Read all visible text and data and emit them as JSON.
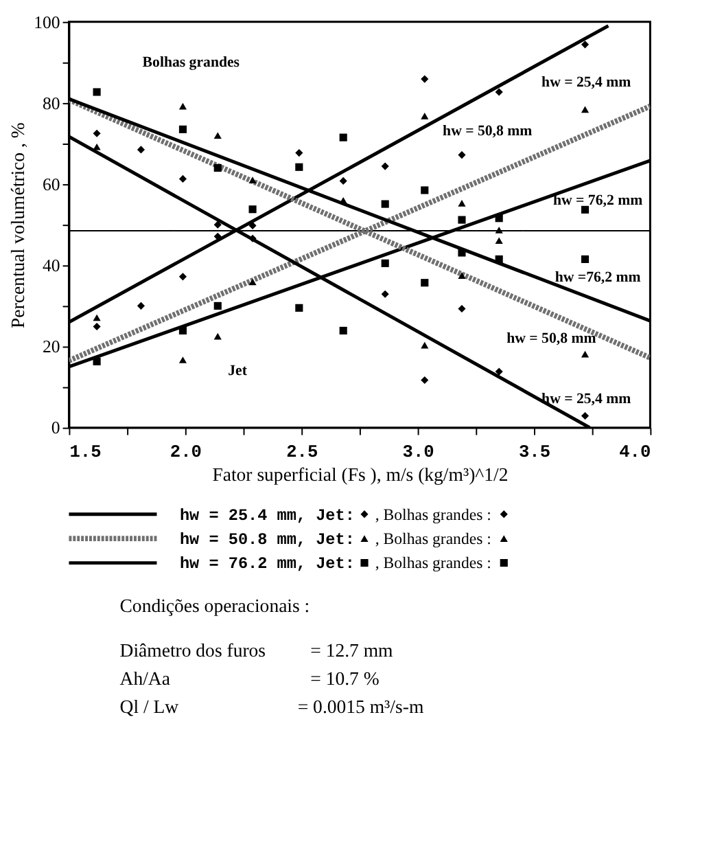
{
  "chart_data": {
    "type": "line",
    "xlabel": "Fator superficial (Fs ), m/s (kg/m³)^1/2",
    "ylabel": "Percentual volumétrico , %",
    "xlim": [
      1.5,
      4.0
    ],
    "xticks": [
      1.5,
      {
        "value": 1.75,
        "label": null
      },
      {
        "value": 2,
        "label": "2.0"
      },
      {
        "value": 2.25,
        "label": null
      },
      2.5,
      {
        "value": 2.75,
        "label": null
      },
      {
        "value": 3,
        "label": "3.0"
      },
      {
        "value": 3.25,
        "label": null
      },
      3.5,
      {
        "value": 3.75,
        "label": null
      },
      {
        "value": 4,
        "label": "4.0"
      }
    ],
    "ylim": [
      0,
      100
    ],
    "yticks": [
      0,
      {
        "value": 10,
        "label": null
      },
      20,
      {
        "value": 30,
        "label": null
      },
      40,
      {
        "value": 50,
        "label": null
      },
      60,
      {
        "value": 70,
        "label": null
      },
      80,
      {
        "value": 90,
        "label": null
      },
      100
    ],
    "grid": false,
    "legend": "bottom",
    "series": [
      {
        "marker": "none",
        "line_style": "solid",
        "color": "#000000",
        "x": [
          1.5,
          3.82
        ],
        "values": [
          26,
          99
        ]
      },
      {
        "marker": "none",
        "line_style": "dotted",
        "color": "#707070",
        "x": [
          1.5,
          4.0
        ],
        "values": [
          16.5,
          79.2
        ]
      },
      {
        "marker": "none",
        "line_style": "solid",
        "color": "#000000",
        "x": [
          1.5,
          4.0
        ],
        "values": [
          15,
          65.8
        ]
      },
      {
        "marker": "none",
        "line_style": "solid",
        "color": "#000000",
        "x": [
          1.5,
          3.74
        ],
        "values": [
          71.7,
          0
        ]
      },
      {
        "marker": "none",
        "line_style": "dotted",
        "color": "#707070",
        "x": [
          1.5,
          4.0
        ],
        "values": [
          80.8,
          17.2
        ]
      },
      {
        "marker": "none",
        "line_style": "solid",
        "color": "#000000",
        "x": [
          1.5,
          4.0
        ],
        "values": [
          81,
          26.3
        ]
      },
      {
        "type": "scatter",
        "name": "hw = 25.4 mm, Jet:",
        "marker": "diamond",
        "color": "#000000",
        "x": [
          1.62,
          1.81,
          1.99,
          2.14,
          2.29,
          2.49,
          2.68,
          2.86,
          3.03,
          3.19,
          3.35,
          3.72
        ],
        "values": [
          24.9,
          30,
          37.2,
          47.1,
          49.8,
          67.7,
          60.8,
          64.4,
          85.9,
          67.2,
          82.7,
          94.4
        ]
      },
      {
        "type": "scatter",
        "name": "hw = 50.8 mm, Jet:",
        "marker": "triangle",
        "color": "#000000",
        "x": [
          1.62,
          1.99,
          2.14,
          2.29,
          3.03,
          3.19,
          3.35,
          3.72
        ],
        "values": [
          27.1,
          16.7,
          22.5,
          35.9,
          76.8,
          55.3,
          48.7,
          78.4
        ]
      },
      {
        "type": "scatter",
        "name": "hw = 76.2 mm, Jet:",
        "marker": "square",
        "color": "#000000",
        "x": [
          1.62,
          1.99,
          2.14,
          2.49,
          2.68,
          2.86,
          3.03,
          3.19,
          3.35,
          3.72
        ],
        "values": [
          16.3,
          23.9,
          30,
          29.5,
          23.9,
          55.1,
          58.5,
          51.2,
          51.6,
          53.7
        ]
      },
      {
        "type": "scatter",
        "name": ", Bolhas grandes :",
        "marker": "diamond",
        "color": "#000000",
        "x": [
          1.62,
          1.81,
          1.99,
          2.14,
          2.29,
          2.86,
          3.03,
          3.19,
          3.35,
          3.72
        ],
        "values": [
          72.5,
          68.5,
          61.3,
          50,
          46.6,
          32.9,
          11.7,
          29.3,
          13.8,
          2.9
        ]
      },
      {
        "type": "scatter",
        "name": ", Bolhas grandes :",
        "marker": "triangle",
        "color": "#000000",
        "x": [
          1.62,
          1.99,
          2.14,
          2.29,
          2.68,
          3.03,
          3.19,
          3.35,
          3.72
        ],
        "values": [
          69.2,
          79.2,
          72,
          61,
          56,
          20.3,
          37.5,
          46.1,
          18.1
        ]
      },
      {
        "type": "scatter",
        "name": ", Bolhas grandes :",
        "marker": "square",
        "color": "#000000",
        "x": [
          1.62,
          1.99,
          2.14,
          2.29,
          2.49,
          2.68,
          2.86,
          3.03,
          3.19,
          3.35,
          3.72
        ],
        "values": [
          82.7,
          73.5,
          64,
          53.8,
          64.2,
          71.5,
          40.5,
          35.7,
          43.1,
          41.5,
          41.5
        ]
      }
    ],
    "ref_lines": [
      {
        "axis": "y",
        "value": 48.5,
        "color": "#000000"
      }
    ],
    "annotations": [
      "Bolhas grandes",
      "Jet",
      "hw = 25,4 mm",
      "hw = 50,8 mm",
      "hw = 76,2 mm",
      "hw =76,2 mm",
      "hw = 50,8 mm",
      "hw = 25,4 mm",
      "Condições operacionais :",
      "Diâmetro dos furos",
      "=  12.7 mm",
      "Ah/Aa",
      "=  10.7 %",
      "Ql / Lw",
      "=  0.0015 m³/s-m"
    ]
  }
}
